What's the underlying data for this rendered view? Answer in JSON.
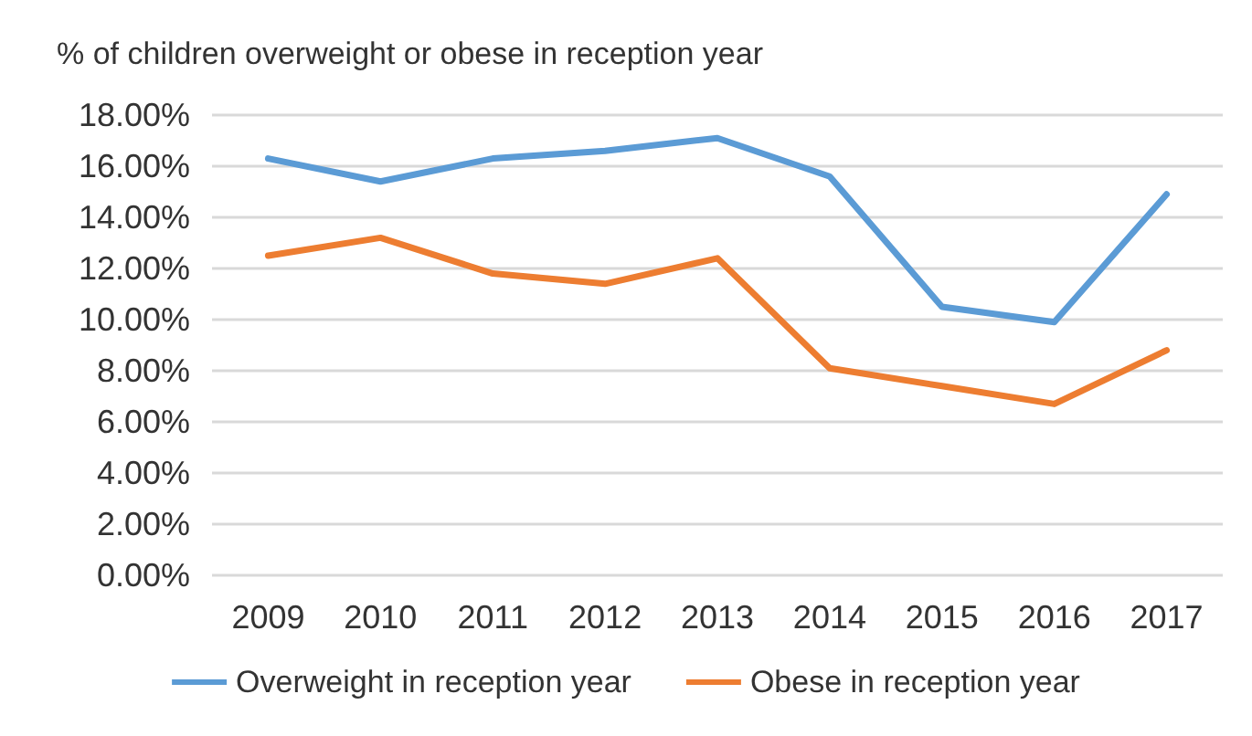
{
  "chart_data": {
    "type": "line",
    "title": "% of children overweight or obese in reception year",
    "categories": [
      "2009",
      "2010",
      "2011",
      "2012",
      "2013",
      "2014",
      "2015",
      "2016",
      "2017"
    ],
    "series": [
      {
        "name": "Overweight in reception year",
        "color": "#5b9bd5",
        "values": [
          16.3,
          15.4,
          16.3,
          16.6,
          17.1,
          15.6,
          10.5,
          9.9,
          14.9
        ]
      },
      {
        "name": "Obese in reception year",
        "color": "#ed7d31",
        "values": [
          12.5,
          13.2,
          11.8,
          11.4,
          12.4,
          8.1,
          7.4,
          6.7,
          8.8
        ]
      }
    ],
    "ylim": [
      0,
      18
    ],
    "yticks": [
      {
        "value": 0,
        "label": "0.00%"
      },
      {
        "value": 2,
        "label": "2.00%"
      },
      {
        "value": 4,
        "label": "4.00%"
      },
      {
        "value": 6,
        "label": "6.00%"
      },
      {
        "value": 8,
        "label": "8.00%"
      },
      {
        "value": 10,
        "label": "10.00%"
      },
      {
        "value": 12,
        "label": "12.00%"
      },
      {
        "value": 14,
        "label": "14.00%"
      },
      {
        "value": 16,
        "label": "16.00%"
      },
      {
        "value": 18,
        "label": "18.00%"
      }
    ],
    "grid": "y",
    "legend": "bottom",
    "marker": "none",
    "line_style": "solid"
  }
}
